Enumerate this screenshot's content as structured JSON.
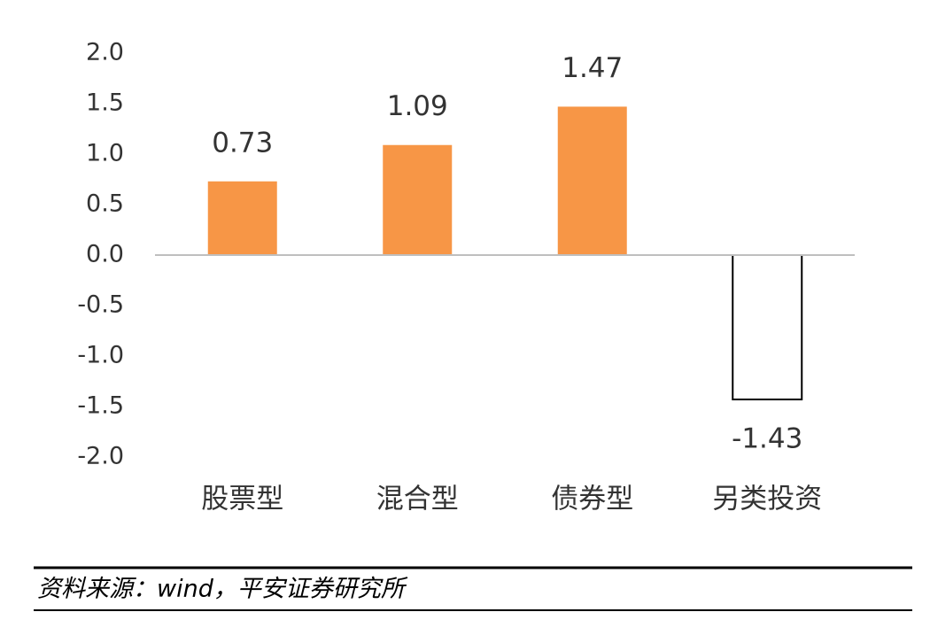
{
  "chart_data": {
    "type": "bar",
    "categories": [
      "股票型",
      "混合型",
      "债券型",
      "另类投资"
    ],
    "values": [
      0.73,
      1.09,
      1.47,
      -1.43
    ],
    "color": "#f79646",
    "negative_fill": "#ffffff",
    "negative_stroke": "#000000",
    "ylim": [
      -2,
      2
    ],
    "yticks": [
      {
        "value": 2,
        "label": "2.0"
      },
      {
        "value": 1.5,
        "label": "1.5"
      },
      {
        "value": 1,
        "label": "1.0"
      },
      {
        "value": 0.5,
        "label": "0.5"
      },
      {
        "value": 0,
        "label": "0.0"
      },
      {
        "value": -0.5,
        "label": "-0.5"
      },
      {
        "value": -1,
        "label": "-1.0"
      },
      {
        "value": -1.5,
        "label": "-1.5"
      },
      {
        "value": -2,
        "label": "-2.0"
      }
    ],
    "grid": false,
    "source": "资料来源：wind，平安证券研究所"
  }
}
